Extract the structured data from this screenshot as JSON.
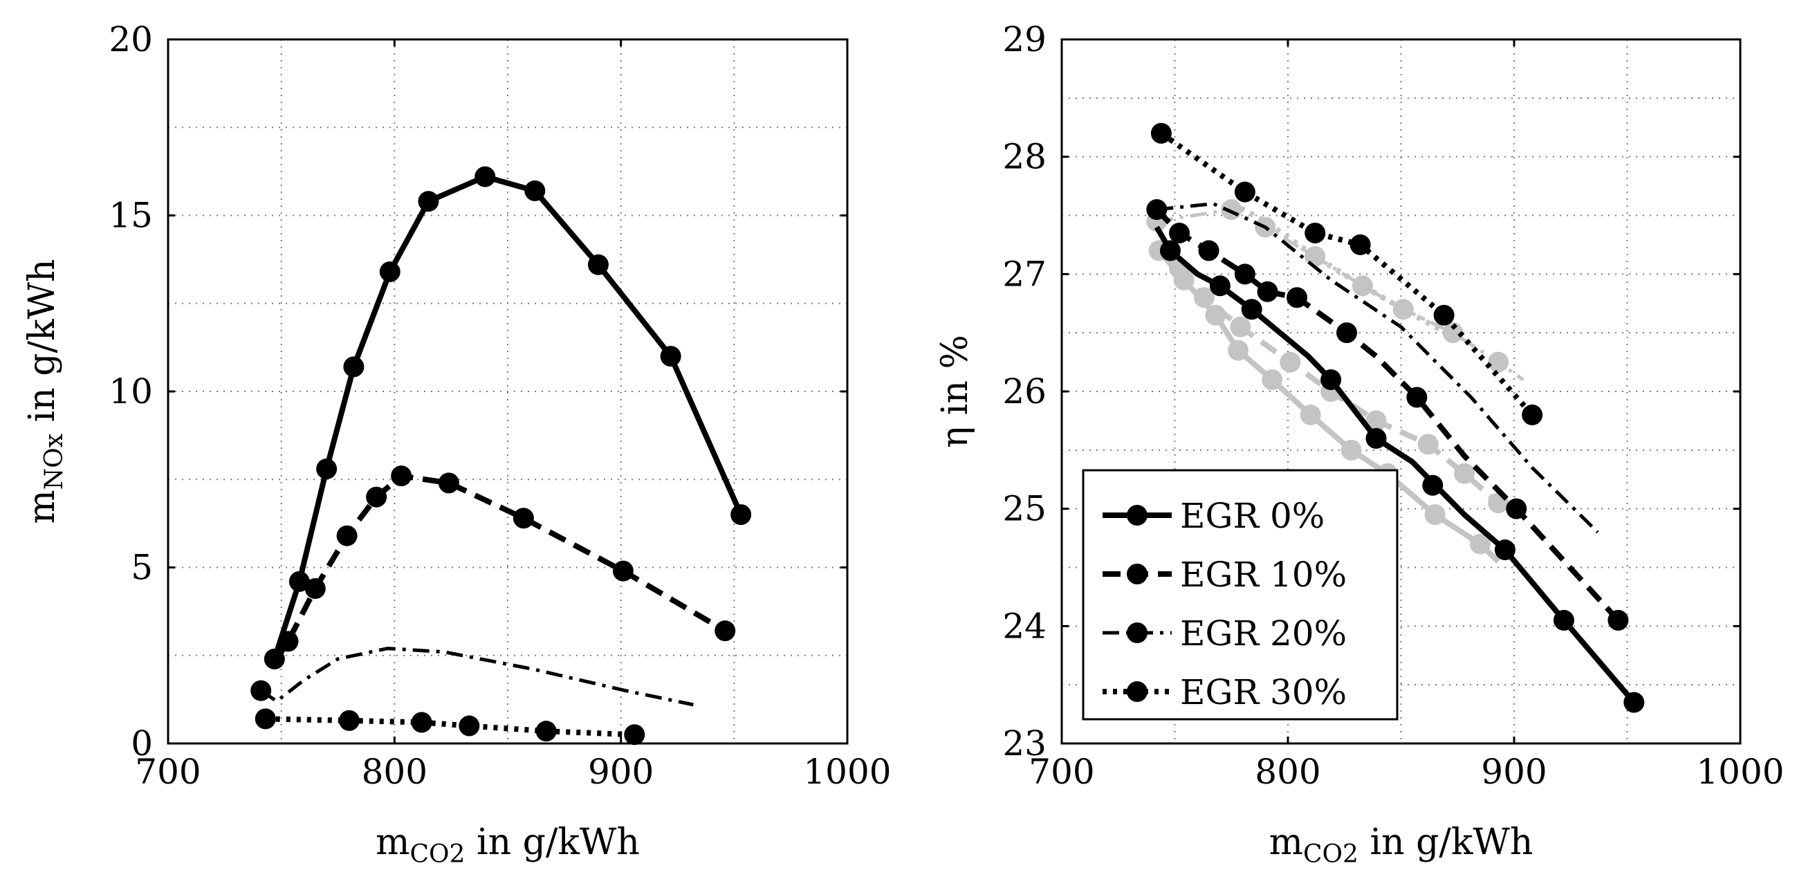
{
  "chart_data": [
    {
      "type": "line",
      "name": "left-chart",
      "title": "",
      "xlabel": {
        "main": "m",
        "sub": "CO2",
        "rest": " in g/kWh"
      },
      "ylabel": {
        "main": "m",
        "sub": "NOx",
        "rest": " in g/kWh"
      },
      "xlim": [
        700,
        1000
      ],
      "ylim": [
        0,
        20
      ],
      "xticks": [
        700,
        800,
        900,
        1000
      ],
      "xtick_labels": [
        "700",
        "800",
        "900",
        "1000"
      ],
      "yticks": [
        0,
        5,
        10,
        15,
        20
      ],
      "ytick_labels": [
        "0",
        "5",
        "10",
        "15",
        "20"
      ],
      "xgrid": [
        700,
        750,
        800,
        850,
        900,
        950,
        1000
      ],
      "ygrid": [
        0,
        2.5,
        5,
        7.5,
        10,
        12.5,
        15,
        17.5,
        20
      ],
      "grid": true,
      "series": [
        {
          "name": "EGR 0%",
          "color": "#000000",
          "style": "solid",
          "marker_color": "#000000",
          "x": [
            747,
            758,
            770,
            782,
            798,
            815,
            840,
            862,
            890,
            922,
            953
          ],
          "y": [
            2.4,
            4.6,
            7.8,
            10.7,
            13.4,
            15.4,
            16.1,
            15.7,
            13.6,
            11.0,
            6.5
          ],
          "markers_x": [
            747,
            758,
            770,
            782,
            798,
            815,
            840,
            862,
            890,
            922,
            953
          ],
          "markers_y": [
            2.4,
            4.6,
            7.8,
            10.7,
            13.4,
            15.4,
            16.1,
            15.7,
            13.6,
            11.0,
            6.5
          ]
        },
        {
          "name": "EGR 10%",
          "color": "#000000",
          "style": "dashed",
          "marker_color": "#000000",
          "x": [
            747,
            753,
            765,
            779,
            792,
            803,
            824,
            857,
            901,
            946
          ],
          "y": [
            2.3,
            2.9,
            4.4,
            5.9,
            7.0,
            7.6,
            7.4,
            6.4,
            4.9,
            3.2
          ],
          "markers_x": [
            753,
            765,
            779,
            792,
            803,
            824,
            857,
            901,
            946
          ],
          "markers_y": [
            2.9,
            4.4,
            5.9,
            7.0,
            7.6,
            7.4,
            6.4,
            4.9,
            3.2
          ]
        },
        {
          "name": "EGR 20%",
          "color": "#000000",
          "style": "dashdot",
          "marker_color": "#000000",
          "x": [
            741,
            748,
            760,
            775,
            797,
            822,
            862,
            902,
            932
          ],
          "y": [
            1.5,
            1.2,
            1.8,
            2.4,
            2.7,
            2.6,
            2.1,
            1.5,
            1.1
          ],
          "markers_x": [
            741
          ],
          "markers_y": [
            1.5
          ]
        },
        {
          "name": "EGR 30%",
          "color": "#000000",
          "style": "dotted",
          "marker_color": "#000000",
          "x": [
            743,
            780,
            812,
            833,
            867,
            906
          ],
          "y": [
            0.7,
            0.65,
            0.6,
            0.5,
            0.35,
            0.25
          ],
          "markers_x": [
            743,
            780,
            812,
            833,
            867,
            906
          ],
          "markers_y": [
            0.7,
            0.65,
            0.6,
            0.5,
            0.35,
            0.25
          ]
        }
      ]
    },
    {
      "type": "line",
      "name": "right-chart",
      "title": "",
      "xlabel": {
        "main": "m",
        "sub": "CO2",
        "rest": " in g/kWh"
      },
      "ylabel": {
        "main": "η in %",
        "sub": "",
        "rest": ""
      },
      "xlim": [
        700,
        1000
      ],
      "ylim": [
        23,
        29
      ],
      "xticks": [
        700,
        800,
        900,
        1000
      ],
      "xtick_labels": [
        "700",
        "800",
        "900",
        "1000"
      ],
      "yticks": [
        23,
        24,
        25,
        26,
        27,
        28,
        29
      ],
      "ytick_labels": [
        "23",
        "24",
        "25",
        "26",
        "27",
        "28",
        "29"
      ],
      "xgrid": [
        700,
        750,
        800,
        850,
        900,
        950,
        1000
      ],
      "ygrid": [
        23,
        23.5,
        24,
        24.5,
        25,
        25.5,
        26,
        26.5,
        27,
        27.5,
        28,
        28.5,
        29
      ],
      "grid": true,
      "series": [
        {
          "name": "EGR 0% (grey)",
          "color": "#c4c4c4",
          "style": "solid",
          "marker_color": "#c4c4c4",
          "x": [
            743,
            754,
            768,
            778,
            793,
            810,
            828,
            844,
            865,
            885,
            893
          ],
          "y": [
            27.2,
            26.95,
            26.65,
            26.35,
            26.1,
            25.8,
            25.5,
            25.3,
            24.95,
            24.7,
            24.55
          ],
          "markers_x": [
            743,
            754,
            768,
            778,
            793,
            810,
            828,
            844,
            865,
            885
          ],
          "markers_y": [
            27.2,
            26.95,
            26.65,
            26.35,
            26.1,
            25.8,
            25.5,
            25.3,
            24.95,
            24.7
          ]
        },
        {
          "name": "EGR 10% (grey)",
          "color": "#c4c4c4",
          "style": "dashed",
          "marker_color": "#c4c4c4",
          "x": [
            752,
            763,
            779,
            801,
            819,
            839,
            862,
            878,
            893
          ],
          "y": [
            27.05,
            26.8,
            26.55,
            26.25,
            26.0,
            25.75,
            25.55,
            25.3,
            25.05
          ],
          "markers_x": [
            752,
            763,
            779,
            801,
            819,
            839,
            862,
            878,
            893
          ],
          "markers_y": [
            27.05,
            26.8,
            26.55,
            26.25,
            26.0,
            25.75,
            25.55,
            25.3,
            25.05
          ]
        },
        {
          "name": "EGR 20% (grey)",
          "color": "#c4c4c4",
          "style": "dashdot",
          "marker_color": "#c4c4c4",
          "x": [
            742,
            775,
            790,
            812,
            833,
            851,
            873,
            893,
            904
          ],
          "y": [
            27.45,
            27.55,
            27.4,
            27.15,
            26.9,
            26.7,
            26.5,
            26.25,
            26.1
          ],
          "markers_x": [
            742,
            775,
            790,
            812,
            833,
            851,
            873,
            893
          ],
          "markers_y": [
            27.45,
            27.55,
            27.4,
            27.15,
            26.9,
            26.7,
            26.5,
            26.25
          ]
        },
        {
          "name": "EGR 30% (grey)",
          "color": "#c4c4c4",
          "style": "dotted",
          "marker_color": "#c4c4c4",
          "x": [
            775,
            790,
            812,
            833,
            851,
            870
          ],
          "y": [
            27.6,
            27.45,
            27.15,
            26.9,
            26.7,
            26.5
          ],
          "markers_x": [],
          "markers_y": []
        },
        {
          "name": "EGR 0%",
          "color": "#000000",
          "style": "solid",
          "marker_color": "#000000",
          "x": [
            742,
            748,
            760,
            770,
            784,
            809,
            819,
            839,
            855,
            878,
            896,
            922,
            953
          ],
          "y": [
            27.4,
            27.2,
            27.0,
            26.9,
            26.7,
            26.3,
            26.1,
            25.6,
            25.4,
            24.95,
            24.65,
            24.05,
            23.35
          ],
          "markers_x": [
            748,
            770,
            784,
            819,
            839,
            864,
            896,
            922,
            953
          ],
          "markers_y": [
            27.2,
            26.9,
            26.7,
            26.1,
            25.6,
            25.2,
            24.65,
            24.05,
            23.35
          ]
        },
        {
          "name": "EGR 10%",
          "color": "#000000",
          "style": "dashed",
          "marker_color": "#000000",
          "x": [
            742,
            752,
            765,
            781,
            791,
            804,
            826,
            839,
            857,
            878,
            901,
            946
          ],
          "y": [
            27.55,
            27.35,
            27.2,
            27.0,
            26.85,
            26.8,
            26.5,
            26.3,
            25.95,
            25.45,
            25.0,
            24.05
          ],
          "markers_x": [
            752,
            765,
            781,
            791,
            804,
            826,
            857,
            901,
            946
          ],
          "markers_y": [
            27.35,
            27.2,
            27.0,
            26.85,
            26.8,
            26.5,
            25.95,
            25.0,
            24.05
          ]
        },
        {
          "name": "EGR 20%",
          "color": "#000000",
          "style": "dashdot",
          "marker_color": "#000000",
          "x": [
            742,
            767,
            790,
            819,
            850,
            881,
            908,
            937
          ],
          "y": [
            27.55,
            27.6,
            27.4,
            26.95,
            26.55,
            25.95,
            25.35,
            24.8
          ],
          "markers_x": [
            742
          ],
          "markers_y": [
            27.55
          ]
        },
        {
          "name": "EGR 30%",
          "color": "#000000",
          "style": "dotted",
          "marker_color": "#000000",
          "x": [
            744,
            781,
            812,
            832,
            869,
            908
          ],
          "y": [
            28.2,
            27.7,
            27.35,
            27.25,
            26.65,
            25.8
          ],
          "markers_x": [
            744,
            781,
            812,
            832,
            869,
            908
          ],
          "markers_y": [
            28.2,
            27.7,
            27.35,
            27.25,
            26.65,
            25.8
          ]
        }
      ],
      "legend": {
        "placement": "bottom-left",
        "entries": [
          {
            "label": "EGR 0%",
            "style": "solid"
          },
          {
            "label": "EGR 10%",
            "style": "dashed"
          },
          {
            "label": "EGR 20%",
            "style": "dashdot"
          },
          {
            "label": "EGR 30%",
            "style": "dotted"
          }
        ]
      }
    }
  ]
}
